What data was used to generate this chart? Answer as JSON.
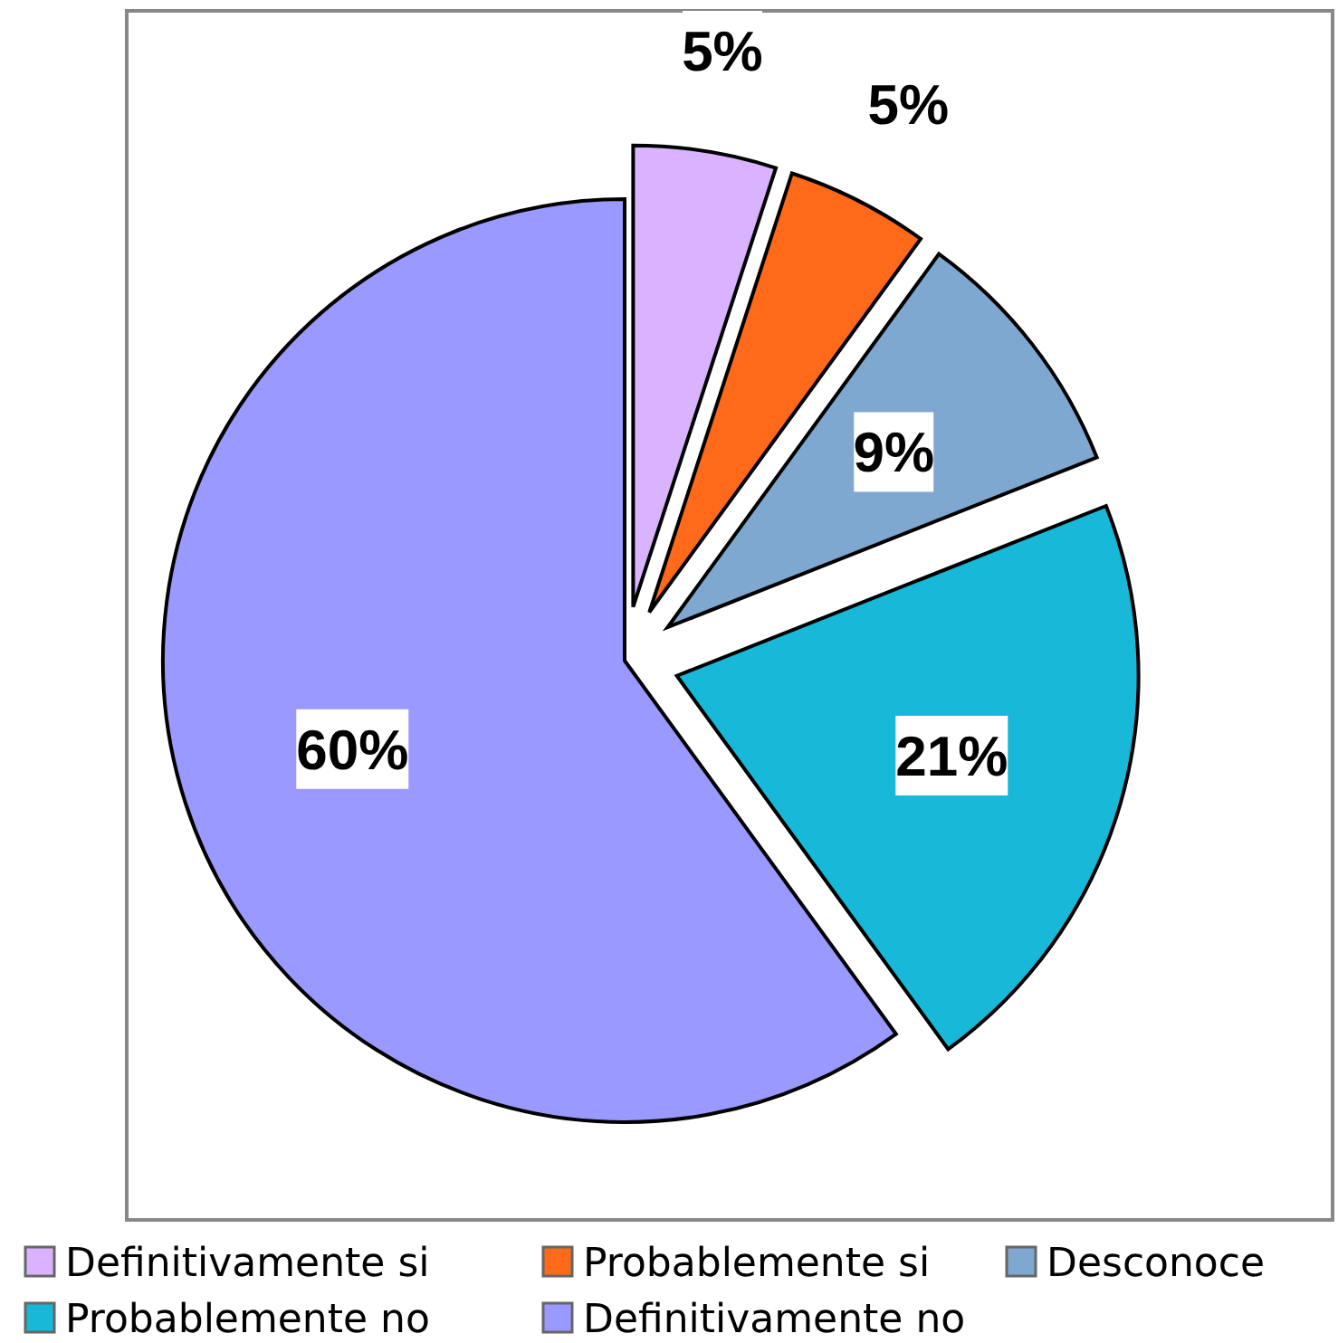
{
  "chart_data": {
    "type": "pie",
    "categories": [
      "Definitivamente si",
      "Probablemente si",
      "Desconoce",
      "Probablemente no",
      "Definitivamente no"
    ],
    "values": [
      5,
      5,
      9,
      21,
      60
    ],
    "value_labels": [
      "5%",
      "5%",
      "9%",
      "21%",
      "60%"
    ],
    "colors": [
      "#d9b3ff",
      "#ff6a1a",
      "#7fa8d0",
      "#17b8d8",
      "#9999ff"
    ],
    "legend": "bottom"
  }
}
